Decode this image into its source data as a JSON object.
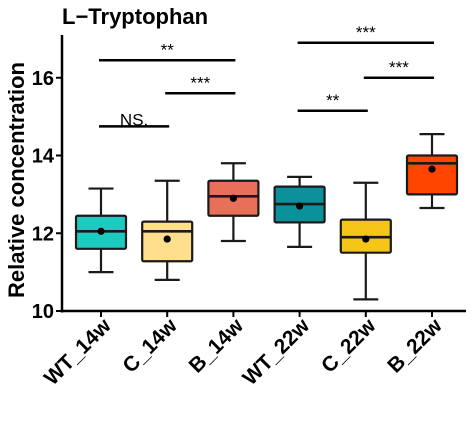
{
  "chart_data": {
    "type": "box",
    "title": "L−Tryptophan",
    "ylabel": "Relative concentration",
    "xlabel": "",
    "ylim": [
      10,
      17.1
    ],
    "yticks": [
      10,
      12,
      14,
      16
    ],
    "grid": false,
    "categories": [
      "WT_14w",
      "C_14w",
      "B_14w",
      "WT_22w",
      "C_22w",
      "B_22w"
    ],
    "boxes": [
      {
        "category": "WT_14w",
        "color": "#1DCAC0",
        "whisker_low": 11.0,
        "q1": 11.6,
        "median": 12.05,
        "q3": 12.45,
        "whisker_high": 13.15,
        "mean": 12.05
      },
      {
        "category": "C_14w",
        "color": "#FFDE8E",
        "whisker_low": 10.8,
        "q1": 11.28,
        "median": 12.05,
        "q3": 12.3,
        "whisker_high": 13.35,
        "mean": 11.85
      },
      {
        "category": "B_14w",
        "color": "#E8705A",
        "whisker_low": 11.8,
        "q1": 12.45,
        "median": 12.95,
        "q3": 13.35,
        "whisker_high": 13.8,
        "mean": 12.9
      },
      {
        "category": "WT_22w",
        "color": "#0B9199",
        "whisker_low": 11.65,
        "q1": 12.28,
        "median": 12.75,
        "q3": 13.2,
        "whisker_high": 13.45,
        "mean": 12.7
      },
      {
        "category": "C_22w",
        "color": "#F5C518",
        "whisker_low": 10.3,
        "q1": 11.5,
        "median": 11.9,
        "q3": 12.35,
        "whisker_high": 13.3,
        "mean": 11.85
      },
      {
        "category": "B_22w",
        "color": "#FF4500",
        "whisker_low": 12.65,
        "q1": 13.0,
        "median": 13.8,
        "q3": 14.0,
        "whisker_high": 14.55,
        "mean": 13.65
      }
    ],
    "annotations": [
      {
        "from": "WT_14w",
        "to": "C_14w",
        "label": "NS.",
        "y": 14.75
      },
      {
        "from": "WT_14w",
        "to": "B_14w",
        "label": "**",
        "y": 16.45
      },
      {
        "from": "C_14w",
        "to": "B_14w",
        "label": "***",
        "y": 15.6
      },
      {
        "from": "WT_22w",
        "to": "C_22w",
        "label": "**",
        "y": 15.15
      },
      {
        "from": "WT_22w",
        "to": "B_22w",
        "label": "***",
        "y": 16.9
      },
      {
        "from": "C_22w",
        "to": "B_22w",
        "label": "***",
        "y": 16.0
      }
    ]
  }
}
